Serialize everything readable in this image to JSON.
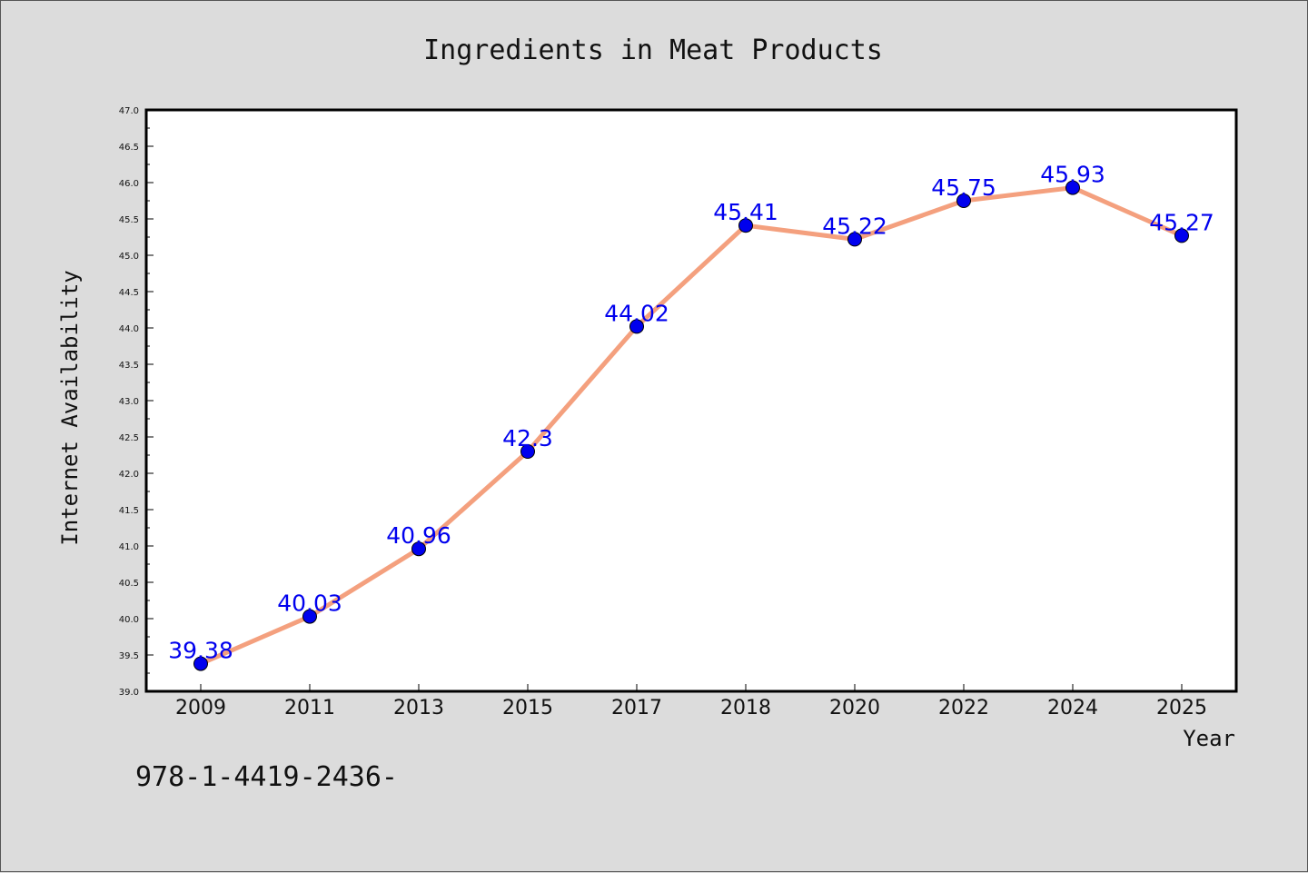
{
  "chart_data": {
    "type": "line",
    "title": "Ingredients in Meat Products",
    "xlabel": "Year",
    "ylabel": "Internet Availability",
    "categories": [
      "2009",
      "2011",
      "2013",
      "2015",
      "2017",
      "2018",
      "2020",
      "2022",
      "2024",
      "2025"
    ],
    "series": [
      {
        "values": [
          39.38,
          40.03,
          40.96,
          42.3,
          44.02,
          45.41,
          45.22,
          45.75,
          45.93,
          45.27
        ]
      }
    ],
    "data_labels": [
      "39.38",
      "40.03",
      "40.96",
      "42.3",
      "44.02",
      "45.41",
      "45.22",
      "45.75",
      "45.93",
      "45.27"
    ],
    "ylim": [
      39.0,
      47.0
    ],
    "yticks": [
      "39.0",
      "39.5",
      "40.0",
      "40.5",
      "41.0",
      "41.5",
      "42.0",
      "42.5",
      "43.0",
      "43.5",
      "44.0",
      "44.5",
      "45.0",
      "45.5",
      "46.0",
      "46.5",
      "47.0"
    ],
    "grid": false,
    "line_color": "#f4a07e",
    "marker_color": "#0000ee",
    "label_color": "#0000ee"
  },
  "footer": {
    "isbn": "978-1-4419-2436-"
  }
}
